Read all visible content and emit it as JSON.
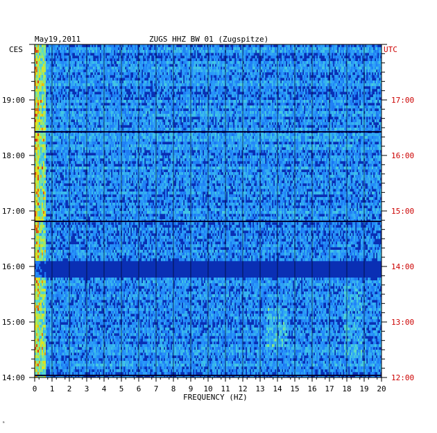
{
  "header": {
    "date": "May19,2011",
    "station": "ZUGS HHZ BW 01 (Zugspitze)",
    "left_zone": "CES",
    "right_zone": "UTC"
  },
  "footer": {
    "mark": "ᵐ"
  },
  "chart_data": {
    "type": "heatmap",
    "title": "ZUGS HHZ BW 01 (Zugspitze)",
    "date": "May19,2011",
    "xlabel": "FREQUENCY (HZ)",
    "xlim": [
      0,
      20
    ],
    "x_ticks": [
      "0",
      "1",
      "2",
      "3",
      "4",
      "5",
      "6",
      "7",
      "8",
      "9",
      "10",
      "11",
      "12",
      "13",
      "14",
      "15",
      "16",
      "17",
      "18",
      "19",
      "20"
    ],
    "y_left_label": "CES",
    "y_left_ticks": [
      "14:00",
      "15:00",
      "16:00",
      "17:00",
      "18:00",
      "19:00"
    ],
    "y_right_label": "UTC",
    "y_right_ticks": [
      "12:00",
      "13:00",
      "14:00",
      "15:00",
      "16:00",
      "17:00"
    ],
    "time_range_ces": [
      "14:00",
      "20:00"
    ],
    "colors": {
      "background_low": "#0a2fb4",
      "mid": "#1e8cff",
      "high": "#2ee8d8",
      "peak_yellow": "#e8e000",
      "peak_red": "#d81010",
      "utc_text": "#cc0000",
      "axis_text": "#000000"
    }
  }
}
